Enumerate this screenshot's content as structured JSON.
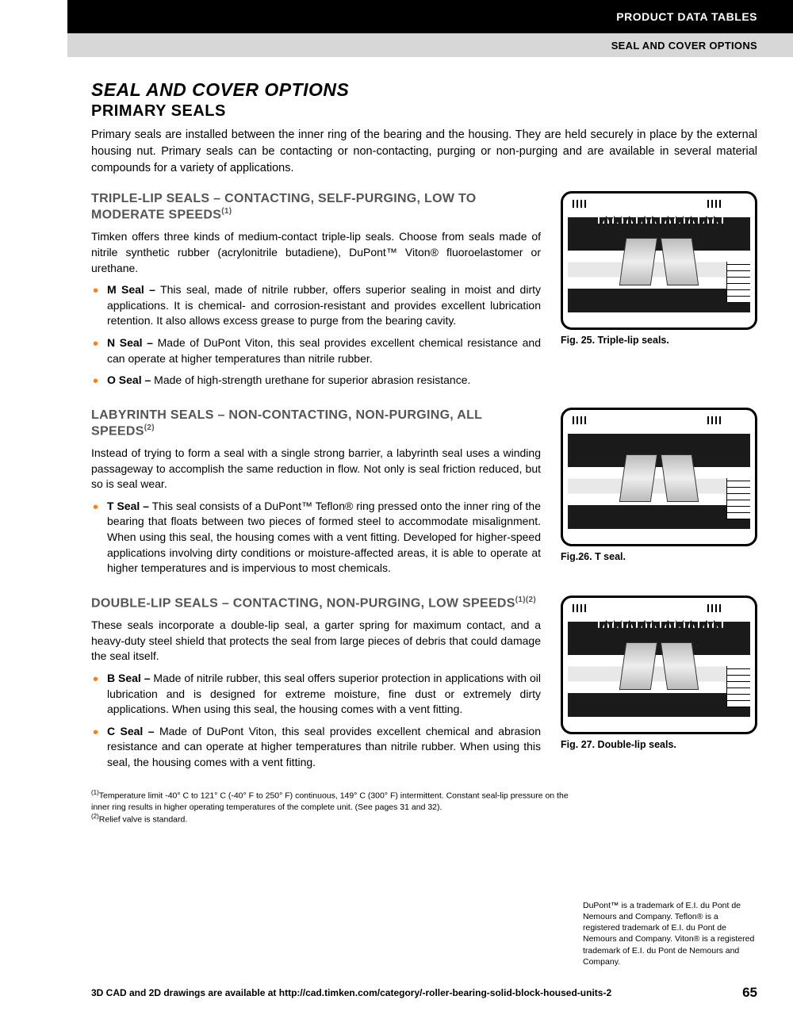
{
  "header": {
    "black": "PRODUCT DATA TABLES",
    "gray": "SEAL AND COVER OPTIONS"
  },
  "title": "SEAL AND COVER OPTIONS",
  "subtitle": "PRIMARY SEALS",
  "intro": "Primary seals are installed between the inner ring of the bearing and the housing. They are held securely in place by the external housing nut. Primary seals can be contacting or non-contacting, purging or non-purging and are available in several material compounds for a variety of applications.",
  "sections": {
    "triple": {
      "head": "TRIPLE-LIP SEALS – CONTACTING, SELF-PURGING, LOW TO MODERATE SPEEDS",
      "sup": "(1)",
      "body": "Timken offers three kinds of medium-contact triple-lip seals. Choose from seals made of nitrile synthetic rubber (acrylonitrile butadiene), DuPont™ Viton® fluoroelastomer or urethane.",
      "items": {
        "m": {
          "name": "M Seal –",
          "text": " This seal, made of nitrile rubber, offers superior sealing in moist and dirty applications. It is chemical- and corrosion-resistant and provides excellent lubrication retention. It also allows excess grease to purge from the bearing cavity."
        },
        "n": {
          "name": "N Seal –",
          "text": " Made of DuPont Viton, this seal provides excellent chemical resistance and can operate at higher temperatures than nitrile rubber."
        },
        "o": {
          "name": "O Seal –",
          "text": " Made of high-strength urethane for superior abrasion resistance."
        }
      },
      "caption": "Fig. 25. Triple-lip seals."
    },
    "labyrinth": {
      "head": "LABYRINTH SEALS – NON-CONTACTING, NON-PURGING, ALL SPEEDS",
      "sup": "(2)",
      "body": "Instead of trying to form a seal with a single strong barrier, a labyrinth seal uses a winding passageway to accomplish the same reduction in flow. Not only is seal friction reduced, but so is seal wear.",
      "items": {
        "t": {
          "name": "T Seal –",
          "text": " This seal consists of a DuPont™ Teflon® ring pressed onto the inner ring of the bearing that floats between two pieces of formed steel to accommodate misalignment. When using this seal, the housing comes with a vent fitting. Developed for higher-speed applications involving dirty conditions or moisture-affected areas, it is able to operate at higher temperatures and is impervious to most chemicals."
        }
      },
      "caption": "Fig.26. T seal."
    },
    "double": {
      "head": "DOUBLE-LIP SEALS – CONTACTING, NON-PURGING, LOW SPEEDS",
      "sup": "(1)(2)",
      "body": "These seals incorporate a double-lip seal, a garter spring for maximum contact, and a heavy-duty steel shield that protects the seal from large pieces of debris that could damage the seal itself.",
      "items": {
        "b": {
          "name": "B Seal –",
          "text": " Made of nitrile rubber, this seal offers superior protection in applications with oil lubrication and is designed for extreme moisture, fine dust or extremely dirty applications. When using this seal, the housing comes with a vent fitting."
        },
        "c": {
          "name": "C Seal –",
          "text": " Made of DuPont Viton, this seal provides excellent chemical and abrasion resistance and can operate at higher temperatures than nitrile rubber. When using this seal, the housing comes with a vent fitting."
        }
      },
      "caption": "Fig. 27. Double-lip seals."
    }
  },
  "footnotes": {
    "f1": "Temperature limit -40° C to 121° C (-40° F to 250° F) continuous, 149° C (300° F) intermittent. Constant seal-lip pressure on the inner ring results in higher operating temperatures of the complete unit. (See pages 31 and 32).",
    "f2": "Relief valve is standard."
  },
  "trademark": "DuPont™ is a trademark of E.I. du Pont de Nemours and Company. Teflon® is a registered trademark of E.I. du Pont de Nemours and Company. Viton® is a registered trademark of E.I. du Pont de Nemours and Company.",
  "footer": {
    "text": "3D CAD and 2D drawings are available at http://cad.timken.com/category/-roller-bearing-solid-block-housed-units-2",
    "page": "65"
  },
  "colors": {
    "bullet": "#f58220",
    "section_head": "#555555",
    "black_bar": "#000000",
    "gray_bar": "#d7d7d7"
  }
}
